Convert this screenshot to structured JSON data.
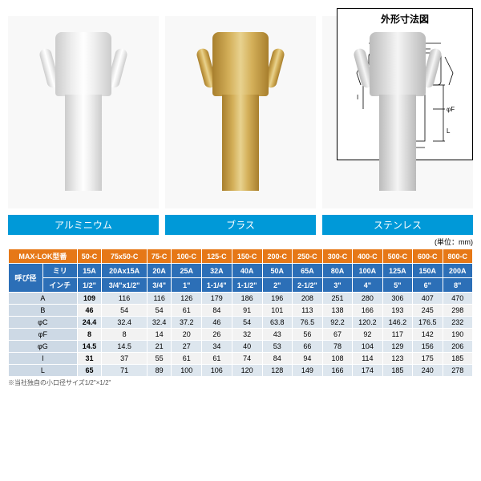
{
  "diagram_title": "外形寸法図",
  "products": [
    {
      "label": "アルミニウム",
      "class": "alu"
    },
    {
      "label": "ブラス",
      "class": "brass"
    },
    {
      "label": "ステンレス",
      "class": "steel"
    }
  ],
  "unit_note": "(単位：mm)",
  "footnote": "※当社独自の小口径サイズ1/2\"×1/2\"",
  "table": {
    "model_label": "MAX-LOK型番",
    "size_label": "呼び径",
    "size_sub": [
      "ミリ",
      "インチ"
    ],
    "models": [
      "50-C",
      "75x50-C",
      "75-C",
      "100-C",
      "125-C",
      "150-C",
      "200-C",
      "250-C",
      "300-C",
      "400-C",
      "500-C",
      "600-C",
      "800-C"
    ],
    "size_mm": [
      "15A",
      "20Ax15A",
      "20A",
      "25A",
      "32A",
      "40A",
      "50A",
      "65A",
      "80A",
      "100A",
      "125A",
      "150A",
      "200A"
    ],
    "size_in": [
      "1/2\"",
      "3/4\"x1/2\"",
      "3/4\"",
      "1\"",
      "1-1/4\"",
      "1-1/2\"",
      "2\"",
      "2-1/2\"",
      "3\"",
      "4\"",
      "5\"",
      "6\"",
      "8\""
    ],
    "dim_labels": [
      "A",
      "B",
      "φC",
      "φF",
      "φG",
      "I",
      "L"
    ],
    "dims": [
      [
        "109",
        "116",
        "116",
        "126",
        "179",
        "186",
        "196",
        "208",
        "251",
        "280",
        "306",
        "407",
        "470"
      ],
      [
        "46",
        "54",
        "54",
        "61",
        "84",
        "91",
        "101",
        "113",
        "138",
        "166",
        "193",
        "245",
        "298"
      ],
      [
        "24.4",
        "32.4",
        "32.4",
        "37.2",
        "46",
        "54",
        "63.8",
        "76.5",
        "92.2",
        "120.2",
        "146.2",
        "176.5",
        "232"
      ],
      [
        "8",
        "8",
        "14",
        "20",
        "26",
        "32",
        "43",
        "56",
        "67",
        "92",
        "117",
        "142",
        "190"
      ],
      [
        "14.5",
        "14.5",
        "21",
        "27",
        "34",
        "40",
        "53",
        "66",
        "78",
        "104",
        "129",
        "156",
        "206"
      ],
      [
        "31",
        "37",
        "55",
        "61",
        "61",
        "74",
        "84",
        "94",
        "108",
        "114",
        "123",
        "175",
        "185"
      ],
      [
        "65",
        "71",
        "89",
        "100",
        "106",
        "120",
        "128",
        "149",
        "166",
        "174",
        "185",
        "240",
        "278"
      ]
    ],
    "colors": {
      "model_hdr": "#e67817",
      "size_hdr": "#2c6fb7",
      "even": "#dde6ee",
      "odd": "#f2f2f2",
      "label": "#cdd9e5"
    }
  },
  "diagram_labels": [
    "A",
    "B",
    "φC",
    "φF",
    "φG",
    "I",
    "L"
  ]
}
